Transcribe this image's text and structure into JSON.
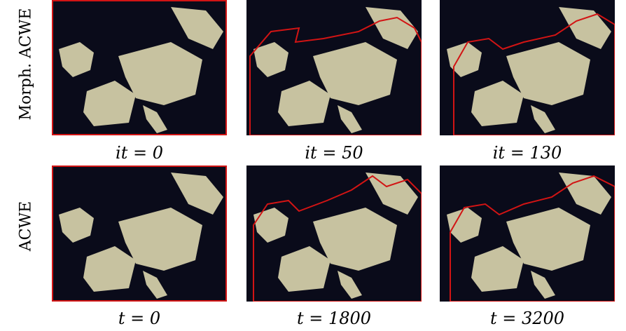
{
  "rows": [
    {
      "label": "Morph. ACWE",
      "captions": [
        "it = 0",
        "it = 50",
        "it = 130"
      ]
    },
    {
      "label": "ACWE",
      "captions": [
        "t = 0",
        "t = 1800",
        "t = 3200"
      ]
    }
  ],
  "colors": {
    "background": "#0a0b1a",
    "lights": "#e9e3b8",
    "contour": "#d21414"
  }
}
